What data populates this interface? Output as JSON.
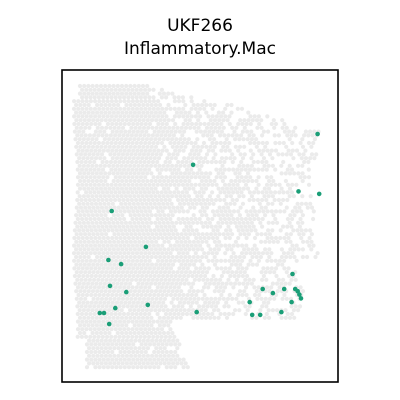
{
  "chart_data": {
    "type": "scatter",
    "title_lines": [
      "UKF266",
      "Inflammatory.Mac"
    ],
    "xlabel": "",
    "ylabel": "",
    "xlim": [
      0,
      100
    ],
    "ylim": [
      0,
      100
    ],
    "grid": false,
    "legend": "none",
    "colors": {
      "highlight": "#1a9e77",
      "background": "#ebebeb",
      "frame": "#000000"
    },
    "highlighted_points": [
      {
        "x": 92.6,
        "y": 79.5
      },
      {
        "x": 47.5,
        "y": 69.6
      },
      {
        "x": 85.7,
        "y": 61.1
      },
      {
        "x": 93.2,
        "y": 60.3
      },
      {
        "x": 18.0,
        "y": 54.8
      },
      {
        "x": 30.4,
        "y": 43.3
      },
      {
        "x": 16.8,
        "y": 39.1
      },
      {
        "x": 21.4,
        "y": 37.8
      },
      {
        "x": 83.5,
        "y": 34.6
      },
      {
        "x": 17.4,
        "y": 30.8
      },
      {
        "x": 84.5,
        "y": 29.8
      },
      {
        "x": 85.4,
        "y": 29.1
      },
      {
        "x": 72.7,
        "y": 29.8
      },
      {
        "x": 76.4,
        "y": 28.5
      },
      {
        "x": 80.5,
        "y": 29.8
      },
      {
        "x": 86.0,
        "y": 28.0
      },
      {
        "x": 86.6,
        "y": 26.8
      },
      {
        "x": 23.3,
        "y": 28.8
      },
      {
        "x": 83.2,
        "y": 25.6
      },
      {
        "x": 31.1,
        "y": 24.7
      },
      {
        "x": 68.0,
        "y": 25.6
      },
      {
        "x": 19.3,
        "y": 23.7
      },
      {
        "x": 48.8,
        "y": 22.4
      },
      {
        "x": 68.9,
        "y": 21.5
      },
      {
        "x": 79.5,
        "y": 22.4
      },
      {
        "x": 13.7,
        "y": 22.1
      },
      {
        "x": 15.2,
        "y": 22.1
      },
      {
        "x": 71.8,
        "y": 21.5
      },
      {
        "x": 17.1,
        "y": 18.6
      }
    ]
  }
}
